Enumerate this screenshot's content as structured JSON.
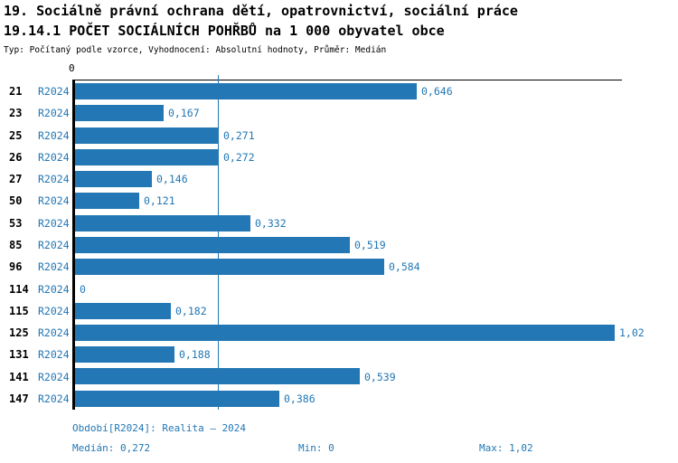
{
  "header": {
    "title_line1": "19. Sociálně právní ochrana dětí, opatrovnictví, sociální práce",
    "title_line2": "19.14.1 POČET SOCIÁLNÍCH POHŘBŮ na 1 000 obyvatel obce",
    "subtitle": "Typ: Počítaný podle vzorce, Vyhodnocení: Absolutní hodnoty, Průměr: Medián"
  },
  "chart_data": {
    "type": "bar",
    "orientation": "horizontal",
    "title": "19.14.1 POČET SOCIÁLNÍCH POHŘBŮ na 1 000 obyvatel obce",
    "series_label": "R2024",
    "categories": [
      "21",
      "23",
      "25",
      "26",
      "27",
      "50",
      "53",
      "85",
      "96",
      "114",
      "115",
      "125",
      "131",
      "141",
      "147"
    ],
    "values": [
      0.646,
      0.167,
      0.271,
      0.272,
      0.146,
      0.121,
      0.332,
      0.519,
      0.584,
      0,
      0.182,
      1.02,
      0.188,
      0.539,
      0.386
    ],
    "value_labels": [
      "0,646",
      "0,167",
      "0,271",
      "0,272",
      "0,146",
      "0,121",
      "0,332",
      "0,519",
      "0,584",
      "0",
      "0,182",
      "1,02",
      "0,188",
      "0,539",
      "0,386"
    ],
    "xlim": [
      0,
      1.034
    ],
    "axis_zero_label": "0",
    "median_value": 0.272,
    "median_label": "0,272",
    "min_value": 0,
    "max_value": 1.02,
    "bar_color": "#2277b4",
    "median_line_color": "#2277b4",
    "grid": false,
    "legend_position": "none"
  },
  "footer": {
    "period_label": "Období[R2024]: Realita – 2024",
    "median_label": "Medián: 0,272",
    "min_label": "Min: 0",
    "max_label": "Max: 1,02"
  }
}
